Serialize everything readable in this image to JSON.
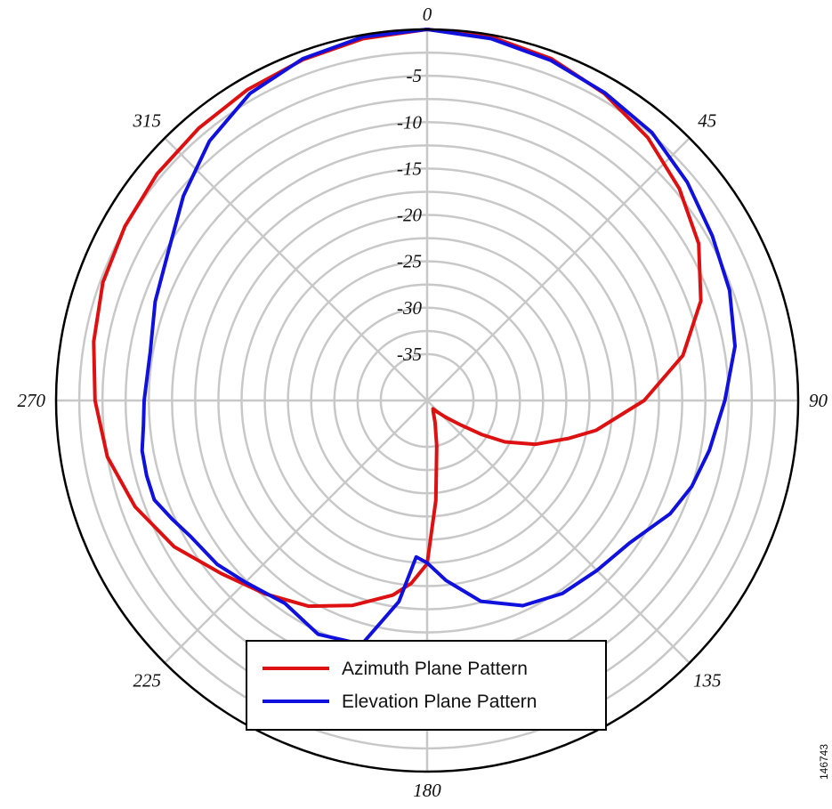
{
  "chart_data": {
    "type": "polar",
    "angle_ticks": [
      "0",
      "45",
      "90",
      "135",
      "180",
      "225",
      "270",
      "315"
    ],
    "radial_ticks": [
      "0",
      "-5",
      "-10",
      "-15",
      "-20",
      "-25",
      "-30",
      "-35"
    ],
    "rlim": [
      -40,
      0
    ],
    "grid": true,
    "legend_position": "bottom-center",
    "series": [
      {
        "name": "Azimuth Plane Pattern",
        "color": "#dd1111",
        "points": [
          [
            0,
            0
          ],
          [
            10,
            -0.2
          ],
          [
            20,
            -0.8
          ],
          [
            30,
            -1.8
          ],
          [
            40,
            -3.0
          ],
          [
            50,
            -4.5
          ],
          [
            60,
            -6.2
          ],
          [
            70,
            -8.6
          ],
          [
            80,
            -12.0
          ],
          [
            90,
            -16.6
          ],
          [
            100,
            -21.5
          ],
          [
            105,
            -24.2
          ],
          [
            112,
            -27.4
          ],
          [
            118,
            -30.5
          ],
          [
            122,
            -33.1
          ],
          [
            126,
            -35.5
          ],
          [
            132,
            -37.3
          ],
          [
            138,
            -38.3
          ],
          [
            145,
            -38.9
          ],
          [
            152,
            -38.6
          ],
          [
            160,
            -37.5
          ],
          [
            168,
            -35.0
          ],
          [
            175,
            -29.2
          ],
          [
            180,
            -22.4
          ],
          [
            185,
            -20.2
          ],
          [
            190,
            -18.7
          ],
          [
            200,
            -16.5
          ],
          [
            210,
            -14.4
          ],
          [
            220,
            -12.8
          ],
          [
            230,
            -11.0
          ],
          [
            240,
            -8.5
          ],
          [
            250,
            -6.5
          ],
          [
            260,
            -5.0
          ],
          [
            270,
            -4.2
          ],
          [
            280,
            -3.5
          ],
          [
            290,
            -2.8
          ],
          [
            300,
            -2.4
          ],
          [
            310,
            -2.0
          ],
          [
            320,
            -1.7
          ],
          [
            330,
            -1.3
          ],
          [
            340,
            -0.9
          ],
          [
            350,
            -0.4
          ],
          [
            360,
            0
          ]
        ]
      },
      {
        "name": "Elevation Plane Pattern",
        "color": "#1111dd",
        "points": [
          [
            0,
            0
          ],
          [
            -10,
            -0.2
          ],
          [
            -20,
            -0.8
          ],
          [
            -30,
            -1.8
          ],
          [
            -40,
            -3.5
          ],
          [
            -50,
            -5.7
          ],
          [
            -60,
            -7.8
          ],
          [
            -70,
            -8.8
          ],
          [
            -80,
            -9.7
          ],
          [
            -90,
            -9.5
          ],
          [
            -95,
            -9.3
          ],
          [
            -100,
            -8.8
          ],
          [
            -105,
            -8.7
          ],
          [
            -110,
            -8.7
          ],
          [
            -115,
            -9.7
          ],
          [
            -120,
            -10.6
          ],
          [
            -128,
            -11.3
          ],
          [
            -135,
            -12.3
          ],
          [
            -145,
            -13.3
          ],
          [
            -155,
            -12.2
          ],
          [
            -165,
            -12.8
          ],
          [
            -172,
            -18.1
          ],
          [
            -176,
            -23.1
          ],
          [
            -180,
            -22.5
          ],
          [
            -186,
            -20.5
          ],
          [
            -195,
            -17.6
          ],
          [
            -205,
            -15.6
          ],
          [
            -215,
            -14.6
          ],
          [
            -225,
            -14.1
          ],
          [
            -235,
            -13.3
          ],
          [
            -245,
            -11.1
          ],
          [
            -252,
            -10.0
          ],
          [
            -260,
            -9.1
          ],
          [
            -270,
            -7.9
          ],
          [
            -280,
            -6.3
          ],
          [
            -290,
            -5.3
          ],
          [
            -300,
            -4.5
          ],
          [
            -310,
            -3.4
          ],
          [
            -320,
            -2.3
          ],
          [
            -330,
            -1.7
          ],
          [
            -340,
            -1.0
          ],
          [
            -350,
            -0.4
          ],
          [
            -360,
            0
          ]
        ]
      }
    ]
  },
  "figure_id": "146743"
}
